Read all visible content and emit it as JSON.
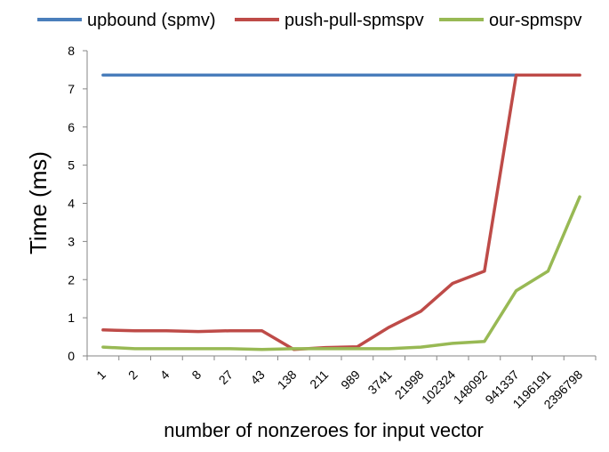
{
  "chart_data": {
    "type": "line",
    "title": "",
    "xlabel": "number of nonzeroes for input vector",
    "ylabel": "Time (ms)",
    "categories": [
      "1",
      "2",
      "4",
      "8",
      "27",
      "43",
      "138",
      "211",
      "989",
      "3741",
      "21998",
      "102324",
      "148092",
      "941337",
      "1196191",
      "2396798"
    ],
    "ylim": [
      0,
      8
    ],
    "yticks": [
      "0",
      "1",
      "2",
      "3",
      "4",
      "5",
      "6",
      "7",
      "8"
    ],
    "grid": false,
    "legend_position": "top",
    "series": [
      {
        "name": "upbound (spmv)",
        "color": "#4a7ebb",
        "values": [
          7.36,
          7.36,
          7.36,
          7.36,
          7.36,
          7.36,
          7.36,
          7.36,
          7.36,
          7.36,
          7.36,
          7.36,
          7.36,
          7.36,
          null,
          null
        ]
      },
      {
        "name": "push-pull-spmspv",
        "color": "#be4b48",
        "values": [
          0.68,
          0.66,
          0.66,
          0.64,
          0.66,
          0.66,
          0.17,
          0.22,
          0.24,
          0.75,
          1.17,
          1.9,
          2.22,
          7.36,
          7.36,
          7.36
        ]
      },
      {
        "name": "our-spmspv",
        "color": "#98b954",
        "values": [
          0.23,
          0.19,
          0.19,
          0.19,
          0.19,
          0.17,
          0.19,
          0.19,
          0.19,
          0.19,
          0.23,
          0.33,
          0.38,
          1.71,
          2.22,
          4.17
        ]
      }
    ]
  }
}
